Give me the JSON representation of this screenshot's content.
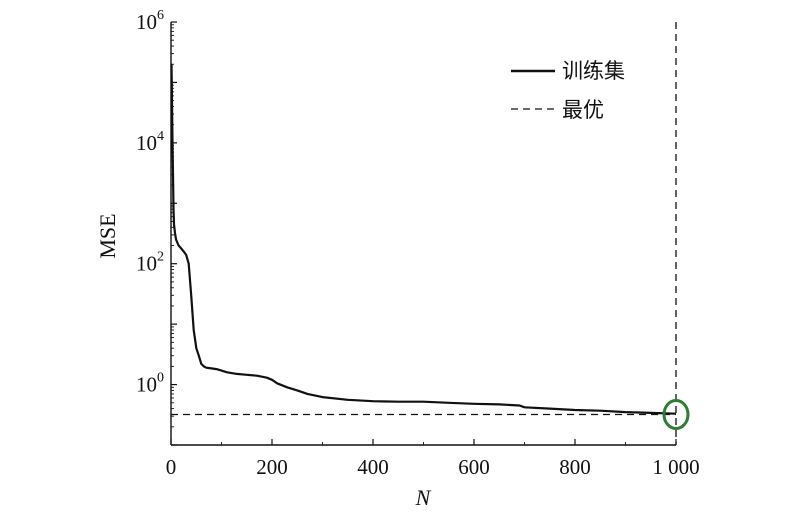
{
  "chart_data": {
    "type": "line",
    "xlabel": "N",
    "ylabel": "MSE",
    "xlim": [
      0,
      1000
    ],
    "ylim_log10": [
      -1,
      6
    ],
    "yscale": "log",
    "x_ticks": [
      0,
      200,
      400,
      600,
      800,
      1000
    ],
    "x_tick_labels": [
      "0",
      "200",
      "400",
      "600",
      "800",
      "1 000"
    ],
    "y_ticks": [
      {
        "base": "10",
        "exp": "0",
        "value": 1
      },
      {
        "base": "10",
        "exp": "2",
        "value": 100
      },
      {
        "base": "10",
        "exp": "4",
        "value": 10000
      },
      {
        "base": "10",
        "exp": "6",
        "value": 1000000
      }
    ],
    "grid": false,
    "legend_position": "top-right",
    "series": [
      {
        "name": "训练集",
        "style": "solid",
        "color": "#111111",
        "x": [
          1,
          2,
          3,
          4,
          5,
          6,
          8,
          10,
          15,
          20,
          25,
          30,
          35,
          40,
          45,
          50,
          55,
          60,
          65,
          70,
          80,
          90,
          100,
          110,
          120,
          130,
          150,
          170,
          190,
          200,
          210,
          230,
          250,
          270,
          300,
          350,
          400,
          450,
          500,
          550,
          600,
          650,
          690,
          700,
          750,
          800,
          850,
          900,
          950,
          1000
        ],
        "y": [
          200000,
          50000,
          10000,
          3000,
          800,
          450,
          320,
          250,
          200,
          180,
          160,
          140,
          100,
          30,
          8,
          4,
          3,
          2.2,
          2.0,
          1.9,
          1.85,
          1.8,
          1.7,
          1.6,
          1.55,
          1.5,
          1.45,
          1.4,
          1.3,
          1.2,
          1.05,
          0.9,
          0.8,
          0.7,
          0.62,
          0.56,
          0.53,
          0.52,
          0.52,
          0.5,
          0.48,
          0.47,
          0.45,
          0.42,
          0.4,
          0.38,
          0.37,
          0.35,
          0.34,
          0.33
        ]
      },
      {
        "name": "最优",
        "style": "dashed",
        "color": "#111111",
        "horizontal_y": 0.32,
        "vertical_x": 1000
      }
    ],
    "annotations": [
      {
        "type": "circle-marker",
        "x": 1000,
        "y": 0.32,
        "color": "#2e7d32"
      }
    ]
  }
}
